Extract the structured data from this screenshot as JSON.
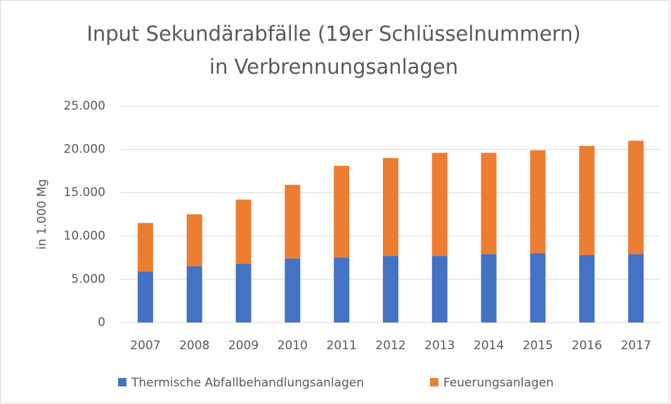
{
  "chart_data": {
    "type": "stacked_bar",
    "title": [
      "Input Sekundärabfälle (19er Schlüsselnummern)",
      "in Verbrennungsanlagen"
    ],
    "y_label": "in 1.000 Mg",
    "categories": [
      "2007",
      "2008",
      "2009",
      "2010",
      "2011",
      "2012",
      "2013",
      "2014",
      "2015",
      "2016",
      "2017"
    ],
    "series": [
      {
        "name": "Thermische Abfallbehandlungsanlagen",
        "color": "#4472c4",
        "values": [
          5900,
          6500,
          6800,
          7400,
          7500,
          7700,
          7700,
          7900,
          8000,
          7800,
          7900
        ]
      },
      {
        "name": "Feuerungsanlagen",
        "color": "#ed7d31",
        "values": [
          5600,
          6000,
          7400,
          8500,
          10600,
          11300,
          11900,
          11700,
          11900,
          12600,
          13100
        ]
      }
    ],
    "ylim": [
      0,
      25000
    ],
    "yticks": [
      0,
      {
        "value": 5000,
        "label": "5.000"
      },
      {
        "value": 10000,
        "label": "10.000"
      },
      {
        "value": 15000,
        "label": "15.000"
      },
      {
        "value": 20000,
        "label": "20.000"
      },
      {
        "value": 25000,
        "label": "25.000"
      }
    ],
    "grid": true,
    "legend": "bottom"
  }
}
